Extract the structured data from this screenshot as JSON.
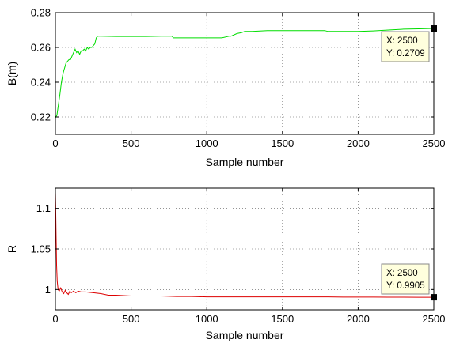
{
  "chart_data": [
    {
      "type": "line",
      "xlabel": "Sample number",
      "ylabel": "B(m)",
      "xlim": [
        0,
        2500
      ],
      "ylim": [
        0.21,
        0.28
      ],
      "xticks": [
        0,
        500,
        1000,
        1500,
        2000,
        2500
      ],
      "yticks": [
        0.22,
        0.24,
        0.26,
        0.28
      ],
      "ytick_labels": [
        "0.22",
        "0.24",
        "0.26",
        "0.28"
      ],
      "grid": true,
      "series": [
        {
          "color": "#00dd00",
          "x": [
            0,
            10,
            20,
            30,
            40,
            50,
            60,
            70,
            80,
            90,
            100,
            110,
            120,
            130,
            140,
            150,
            160,
            170,
            180,
            190,
            200,
            210,
            220,
            230,
            240,
            250,
            260,
            270,
            280,
            290,
            300,
            400,
            500,
            600,
            700,
            770,
            780,
            800,
            900,
            1000,
            1100,
            1150,
            1160,
            1200,
            1230,
            1250,
            1300,
            1400,
            1500,
            1600,
            1700,
            1780,
            1800,
            1900,
            2000,
            2100,
            2200,
            2300,
            2400,
            2500
          ],
          "y": [
            0.2195,
            0.221,
            0.227,
            0.233,
            0.24,
            0.245,
            0.248,
            0.251,
            0.252,
            0.253,
            0.253,
            0.255,
            0.257,
            0.259,
            0.257,
            0.258,
            0.256,
            0.258,
            0.258,
            0.259,
            0.258,
            0.26,
            0.259,
            0.26,
            0.26,
            0.261,
            0.262,
            0.2655,
            0.2665,
            0.2665,
            0.2665,
            0.2663,
            0.2663,
            0.2663,
            0.2665,
            0.2665,
            0.2655,
            0.2655,
            0.2655,
            0.2655,
            0.2655,
            0.2665,
            0.2665,
            0.268,
            0.2685,
            0.2692,
            0.2692,
            0.2697,
            0.2697,
            0.2697,
            0.2697,
            0.2697,
            0.2692,
            0.2692,
            0.2692,
            0.2695,
            0.27,
            0.2705,
            0.2707,
            0.2709
          ]
        }
      ],
      "datatip": {
        "x_label": "X: 2500",
        "y_label": "Y: 0.2709",
        "x": 2500,
        "y": 0.2709
      }
    },
    {
      "type": "line",
      "xlabel": "Sample number",
      "ylabel": "R",
      "xlim": [
        0,
        2500
      ],
      "ylim": [
        0.975,
        1.125
      ],
      "xticks": [
        0,
        500,
        1000,
        1500,
        2000,
        2500
      ],
      "yticks": [
        1.0,
        1.05,
        1.1
      ],
      "ytick_labels": [
        "1",
        "1.05",
        "1.1"
      ],
      "grid": true,
      "series": [
        {
          "color": "#dd0000",
          "x": [
            0,
            2,
            5,
            8,
            12,
            18,
            25,
            35,
            45,
            55,
            65,
            75,
            85,
            95,
            105,
            120,
            135,
            150,
            170,
            200,
            250,
            300,
            350,
            400,
            500,
            600,
            700,
            800,
            900,
            1000,
            1100,
            1200,
            1300,
            1400,
            1500,
            1600,
            1700,
            1800,
            1900,
            2000,
            2100,
            2200,
            2300,
            2400,
            2500
          ],
          "y": [
            1.12,
            1.1,
            1.06,
            1.03,
            1.01,
            1.0,
            0.998,
            1.002,
            0.997,
            0.995,
            0.999,
            0.996,
            0.994,
            0.998,
            0.996,
            0.998,
            0.996,
            0.998,
            0.997,
            0.997,
            0.996,
            0.995,
            0.993,
            0.993,
            0.992,
            0.992,
            0.992,
            0.9915,
            0.9915,
            0.991,
            0.991,
            0.991,
            0.991,
            0.991,
            0.991,
            0.991,
            0.991,
            0.991,
            0.9907,
            0.9907,
            0.9907,
            0.9906,
            0.9906,
            0.9905,
            0.9905
          ]
        }
      ],
      "datatip": {
        "x_label": "X: 2500",
        "y_label": "Y: 0.9905",
        "x": 2500,
        "y": 0.9905
      }
    }
  ]
}
